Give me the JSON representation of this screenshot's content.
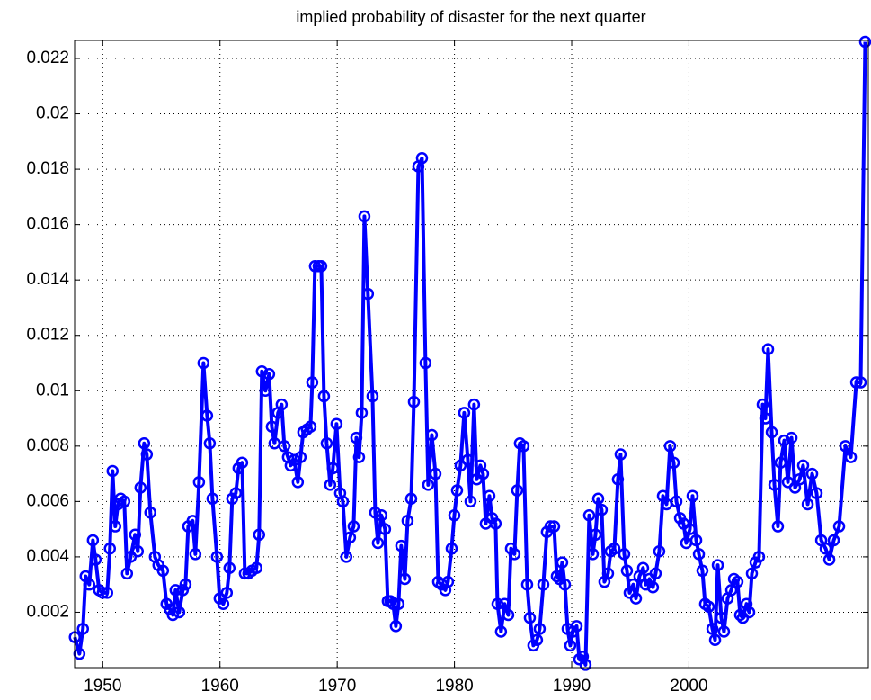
{
  "chart_data": {
    "type": "line",
    "title": "implied probability of disaster for the next quarter",
    "color": "#0000ff",
    "grid": true,
    "marker": "circle",
    "xlim": [
      1947.6,
      2015.3
    ],
    "xticks": [
      1950,
      1960,
      1970,
      1980,
      1990,
      2000
    ],
    "ylim": [
      0,
      0.02265
    ],
    "yticks": [
      0.002,
      0.004,
      0.006,
      0.008,
      0.01,
      0.012,
      0.014,
      0.016,
      0.018,
      0.02,
      0.022
    ],
    "x": [
      1947.62,
      1948.01,
      1948.31,
      1948.54,
      1948.85,
      1949.16,
      1949.39,
      1949.69,
      1950.0,
      1950.38,
      1950.61,
      1950.84,
      1951.07,
      1951.3,
      1951.53,
      1951.84,
      1952.07,
      1952.38,
      1952.76,
      1952.99,
      1953.22,
      1953.53,
      1953.76,
      1954.06,
      1954.45,
      1954.75,
      1955.14,
      1955.44,
      1955.75,
      1955.98,
      1956.21,
      1956.52,
      1956.83,
      1957.06,
      1957.29,
      1957.67,
      1957.9,
      1958.21,
      1958.59,
      1958.9,
      1959.13,
      1959.36,
      1959.74,
      1959.97,
      1960.28,
      1960.58,
      1960.81,
      1961.04,
      1961.35,
      1961.58,
      1961.89,
      1962.12,
      1962.42,
      1962.73,
      1963.11,
      1963.34,
      1963.57,
      1963.88,
      1964.19,
      1964.42,
      1964.65,
      1964.95,
      1965.26,
      1965.49,
      1965.8,
      1966.03,
      1966.33,
      1966.64,
      1966.87,
      1967.1,
      1967.41,
      1967.72,
      1967.87,
      1968.1,
      1968.41,
      1968.64,
      1968.87,
      1969.1,
      1969.4,
      1969.63,
      1969.94,
      1970.25,
      1970.48,
      1970.78,
      1971.09,
      1971.4,
      1971.63,
      1971.86,
      1972.09,
      1972.32,
      1972.62,
      1973.01,
      1973.24,
      1973.47,
      1973.77,
      1974.08,
      1974.31,
      1974.54,
      1974.77,
      1975.0,
      1975.23,
      1975.46,
      1975.77,
      1976.0,
      1976.31,
      1976.54,
      1976.92,
      1977.23,
      1977.53,
      1977.76,
      1978.07,
      1978.38,
      1978.61,
      1978.91,
      1979.22,
      1979.45,
      1979.76,
      1979.99,
      1980.22,
      1980.52,
      1980.83,
      1981.14,
      1981.37,
      1981.67,
      1981.9,
      1982.21,
      1982.44,
      1982.67,
      1982.98,
      1983.21,
      1983.51,
      1983.67,
      1983.97,
      1984.28,
      1984.59,
      1984.82,
      1985.12,
      1985.35,
      1985.58,
      1985.89,
      1986.2,
      1986.43,
      1986.73,
      1987.04,
      1987.27,
      1987.58,
      1987.88,
      1988.19,
      1988.5,
      1988.73,
      1988.96,
      1989.19,
      1989.42,
      1989.65,
      1989.88,
      1990.11,
      1990.42,
      1990.65,
      1990.95,
      1991.18,
      1991.49,
      1991.8,
      1992.03,
      1992.26,
      1992.56,
      1992.79,
      1993.1,
      1993.33,
      1993.64,
      1993.94,
      1994.17,
      1994.48,
      1994.71,
      1994.94,
      1995.25,
      1995.48,
      1995.78,
      1996.09,
      1996.32,
      1996.63,
      1996.93,
      1997.16,
      1997.47,
      1997.78,
      1998.09,
      1998.39,
      1998.7,
      1998.93,
      1999.24,
      1999.54,
      1999.77,
      2000.08,
      2000.31,
      2000.62,
      2000.85,
      2001.15,
      2001.38,
      2001.69,
      2002.0,
      2002.23,
      2002.46,
      2002.76,
      2002.99,
      2003.3,
      2003.61,
      2003.84,
      2004.14,
      2004.37,
      2004.6,
      2004.91,
      2005.14,
      2005.37,
      2005.68,
      2005.98,
      2006.29,
      2006.52,
      2006.75,
      2007.06,
      2007.29,
      2007.59,
      2007.82,
      2008.13,
      2008.44,
      2008.75,
      2009.05,
      2009.44,
      2009.74,
      2010.13,
      2010.51,
      2010.89,
      2011.28,
      2011.66,
      2011.97,
      2012.35,
      2012.81,
      2013.35,
      2013.81,
      2014.27,
      2014.65,
      2015.03
    ],
    "values": [
      0.0011,
      0.0005,
      0.0014,
      0.0033,
      0.003,
      0.0046,
      0.0039,
      0.0028,
      0.0027,
      0.0027,
      0.0043,
      0.0071,
      0.0051,
      0.0059,
      0.0061,
      0.006,
      0.0034,
      0.004,
      0.0048,
      0.0042,
      0.0065,
      0.0081,
      0.0077,
      0.0056,
      0.004,
      0.0037,
      0.0035,
      0.0023,
      0.0021,
      0.0019,
      0.0028,
      0.002,
      0.0028,
      0.003,
      0.0051,
      0.0053,
      0.0041,
      0.0067,
      0.011,
      0.0091,
      0.0081,
      0.0061,
      0.004,
      0.0025,
      0.0023,
      0.0027,
      0.0036,
      0.0061,
      0.0063,
      0.0072,
      0.0074,
      0.0034,
      0.0034,
      0.0035,
      0.0036,
      0.0048,
      0.0107,
      0.01,
      0.0106,
      0.0087,
      0.0081,
      0.0092,
      0.0095,
      0.008,
      0.0076,
      0.0073,
      0.0075,
      0.0067,
      0.0076,
      0.0085,
      0.0086,
      0.0087,
      0.0103,
      0.0145,
      0.0145,
      0.0145,
      0.0098,
      0.0081,
      0.0066,
      0.0072,
      0.0088,
      0.0063,
      0.006,
      0.004,
      0.0047,
      0.0051,
      0.0083,
      0.0076,
      0.0092,
      0.0163,
      0.0135,
      0.0098,
      0.0056,
      0.0045,
      0.0055,
      0.005,
      0.0024,
      0.0024,
      0.0023,
      0.0015,
      0.0023,
      0.0044,
      0.0032,
      0.0053,
      0.0061,
      0.0096,
      0.0181,
      0.0184,
      0.011,
      0.0066,
      0.0084,
      0.007,
      0.0031,
      0.003,
      0.0028,
      0.0031,
      0.0043,
      0.0055,
      0.0064,
      0.0073,
      0.0092,
      0.0075,
      0.006,
      0.0095,
      0.0068,
      0.0073,
      0.007,
      0.0052,
      0.0062,
      0.0054,
      0.0052,
      0.0023,
      0.0013,
      0.0023,
      0.0019,
      0.0043,
      0.0041,
      0.0064,
      0.0081,
      0.008,
      0.003,
      0.0018,
      0.0008,
      0.001,
      0.0014,
      0.003,
      0.0049,
      0.0051,
      0.0051,
      0.0033,
      0.0032,
      0.0038,
      0.003,
      0.0014,
      0.0008,
      0.0013,
      0.0015,
      0.0003,
      0.0004,
      0.0001,
      0.0055,
      0.0041,
      0.0048,
      0.0061,
      0.0057,
      0.0031,
      0.0034,
      0.0042,
      0.0043,
      0.0068,
      0.0077,
      0.0041,
      0.0035,
      0.0027,
      0.003,
      0.0025,
      0.0033,
      0.0036,
      0.003,
      0.0032,
      0.0029,
      0.0034,
      0.0042,
      0.0062,
      0.0059,
      0.008,
      0.0074,
      0.006,
      0.0054,
      0.0052,
      0.0045,
      0.005,
      0.0062,
      0.0046,
      0.0041,
      0.0035,
      0.0023,
      0.0022,
      0.0014,
      0.001,
      0.0037,
      0.0018,
      0.0013,
      0.0025,
      0.0028,
      0.0032,
      0.0031,
      0.0019,
      0.0018,
      0.0023,
      0.002,
      0.0034,
      0.0038,
      0.004,
      0.0095,
      0.009,
      0.0115,
      0.0085,
      0.0066,
      0.0051,
      0.0074,
      0.0082,
      0.0067,
      0.0083,
      0.0065,
      0.0068,
      0.0073,
      0.0059,
      0.007,
      0.0063,
      0.0046,
      0.0043,
      0.0039,
      0.0046,
      0.0051,
      0.008,
      0.0076,
      0.0103,
      0.0103,
      0.0226
    ]
  }
}
